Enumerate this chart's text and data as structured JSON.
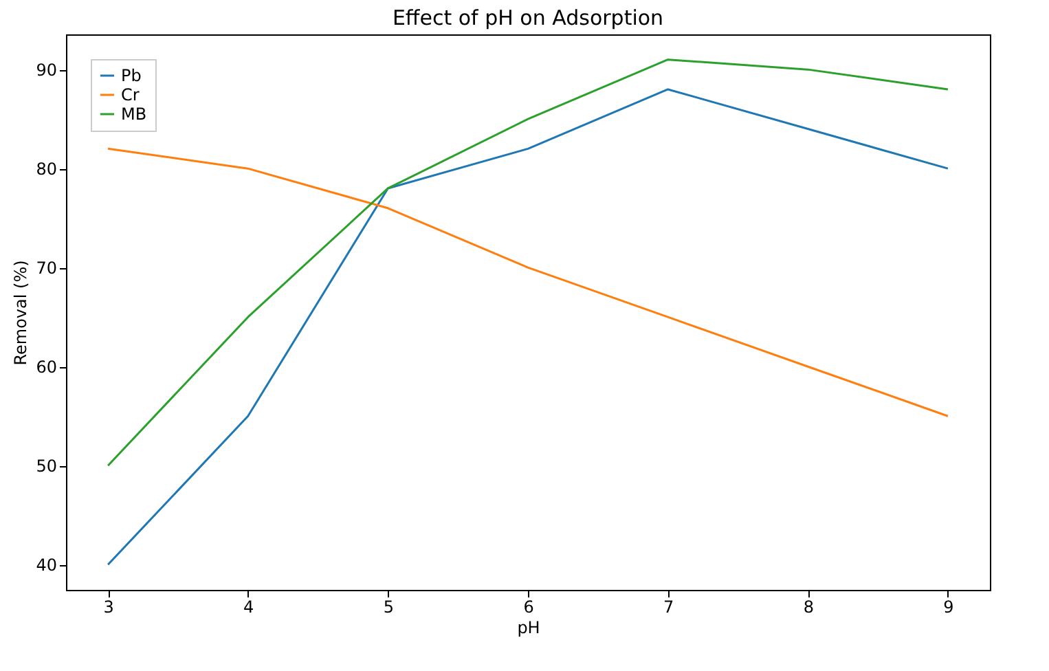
{
  "chart_data": {
    "type": "line",
    "title": "Effect of pH on Adsorption",
    "xlabel": "pH",
    "ylabel": "Removal (%)",
    "x": [
      3,
      4,
      5,
      6,
      7,
      8,
      9
    ],
    "series": [
      {
        "name": "Pb",
        "color": "#1f77b4",
        "values": [
          40,
          55,
          78,
          82,
          88,
          84,
          80
        ]
      },
      {
        "name": "Cr",
        "color": "#ff7f0e",
        "values": [
          82,
          80,
          76,
          70,
          65,
          60,
          55
        ]
      },
      {
        "name": "MB",
        "color": "#2ca02c",
        "values": [
          50,
          65,
          78,
          85,
          91,
          90,
          88
        ]
      }
    ],
    "xlim": [
      2.7,
      9.3
    ],
    "xticks": [
      3,
      4,
      5,
      6,
      7,
      8,
      9
    ],
    "ylim": [
      37.45,
      93.55
    ],
    "yticks": [
      40,
      50,
      60,
      70,
      80,
      90
    ],
    "legend": "top left",
    "grid": false,
    "marker": "none",
    "line_style": "solid"
  }
}
